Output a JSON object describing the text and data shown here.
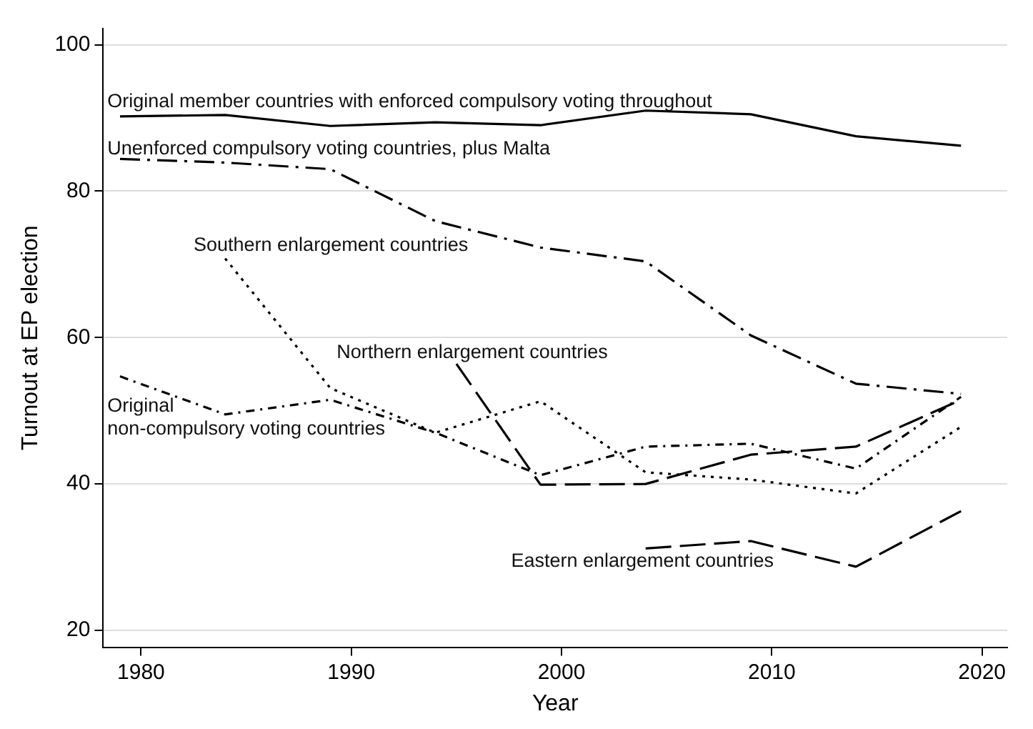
{
  "chart_data": {
    "type": "line",
    "xlabel": "Year",
    "ylabel": "Turnout at EP election",
    "xlim": [
      1978.2,
      2021.2
    ],
    "xticks": [
      1980,
      1990,
      2000,
      2010,
      2020
    ],
    "ylim": [
      17.7,
      102.2
    ],
    "yticks": [
      20,
      40,
      60,
      80,
      100
    ],
    "grid": "y",
    "legend": false,
    "marker": "none",
    "series": [
      {
        "name": "Original member countries with enforced compulsory voting throughout",
        "color": "#000000",
        "line_style": "solid",
        "x": [
          1979,
          1984,
          1989,
          1994,
          1999,
          2004,
          2009,
          2014,
          2019
        ],
        "values": [
          90.2,
          90.4,
          88.9,
          89.4,
          89.0,
          91.0,
          90.5,
          87.5,
          86.2
        ]
      },
      {
        "name": "Unenforced compulsory voting countries, plus Malta",
        "color": "#000000",
        "line_style": "dashdot",
        "x": [
          1979,
          1984,
          1989,
          1994,
          1999,
          2004,
          2009,
          2014,
          2019
        ],
        "values": [
          84.4,
          83.9,
          83.0,
          75.9,
          72.3,
          70.4,
          60.3,
          53.7,
          52.3
        ]
      },
      {
        "name": "Southern enlargement countries",
        "color": "#000000",
        "line_style": "dotted",
        "x": [
          1984,
          1989,
          1994,
          1999,
          2004,
          2009,
          2014,
          2019
        ],
        "values": [
          70.8,
          53.1,
          47.0,
          51.3,
          41.6,
          40.6,
          38.7,
          47.8
        ]
      },
      {
        "name": "Northern enlargement countries",
        "color": "#000000",
        "line_style": "dashed",
        "x": [
          1995,
          1999,
          2004,
          2009,
          2014,
          2019
        ],
        "values": [
          56.4,
          39.9,
          40.0,
          44.0,
          45.1,
          51.5
        ]
      },
      {
        "name": "Original non-compulsory voting countries",
        "color": "#000000",
        "line_style": "dashdot",
        "x": [
          1979,
          1984,
          1989,
          1994,
          1999,
          2004,
          2009,
          2014,
          2019
        ],
        "values": [
          54.7,
          49.5,
          51.5,
          47.0,
          41.2,
          45.1,
          45.5,
          42.1,
          51.9
        ]
      },
      {
        "name": "Eastern enlargement countries",
        "color": "#000000",
        "line_style": "dashed",
        "x": [
          2004,
          2009,
          2014,
          2019
        ],
        "values": [
          31.2,
          32.2,
          28.7,
          36.3
        ]
      }
    ]
  }
}
